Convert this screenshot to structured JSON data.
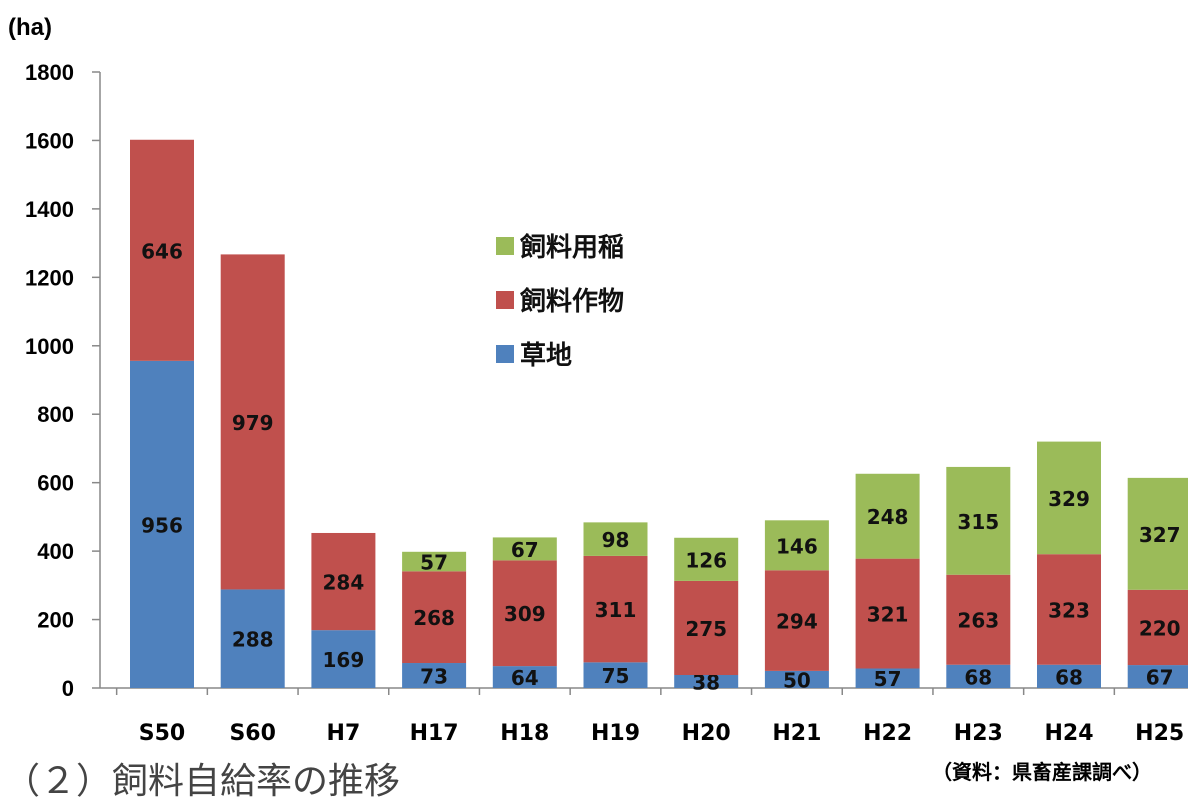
{
  "unit_label": "(ha)",
  "source_note": "（資料：県畜産課調べ）",
  "caption_partial": "（２）飼料自給率の推移",
  "colors": {
    "grassland": "#4f81bd",
    "crops": "#c0504d",
    "rice": "#9bbb59",
    "axis": "#888888"
  },
  "chart_data": {
    "type": "bar",
    "stacked": true,
    "title": "",
    "xlabel": "",
    "ylabel": "(ha)",
    "ylim": [
      0,
      1800
    ],
    "yticks": [
      0,
      200,
      400,
      600,
      800,
      1000,
      1200,
      1400,
      1600,
      1800
    ],
    "grid": false,
    "legend_position": "center",
    "legend_order": [
      "飼料用稲",
      "飼料作物",
      "草地"
    ],
    "categories": [
      "S50",
      "S60",
      "H7",
      "H17",
      "H18",
      "H19",
      "H20",
      "H21",
      "H22",
      "H23",
      "H24",
      "H25"
    ],
    "series": [
      {
        "name": "草地",
        "color": "#4f81bd",
        "values": [
          956,
          288,
          169,
          73,
          64,
          75,
          38,
          50,
          57,
          68,
          68,
          67
        ]
      },
      {
        "name": "飼料作物",
        "color": "#c0504d",
        "values": [
          646,
          979,
          284,
          268,
          309,
          311,
          275,
          294,
          321,
          263,
          323,
          220
        ]
      },
      {
        "name": "飼料用稲",
        "color": "#9bbb59",
        "values": [
          null,
          null,
          null,
          57,
          67,
          98,
          126,
          146,
          248,
          315,
          329,
          327
        ]
      }
    ],
    "data_labels": [
      [
        "956",
        "288",
        "169",
        "73",
        "64",
        "75",
        "38",
        "50",
        "57",
        "68",
        "68",
        "67"
      ],
      [
        "646",
        "979",
        "284",
        "268",
        "309",
        "311",
        "275",
        "294",
        "321",
        "263",
        "323",
        "220"
      ],
      [
        "",
        "",
        "",
        "57",
        "67",
        "98",
        "126",
        "146",
        "248",
        "315",
        "329",
        "327"
      ]
    ]
  }
}
